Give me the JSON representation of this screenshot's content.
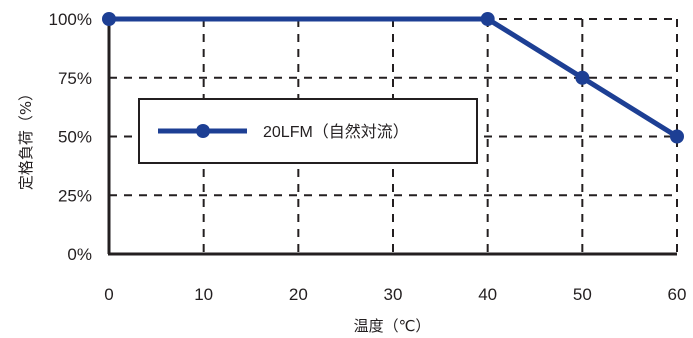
{
  "chart_data": {
    "type": "line",
    "xlabel": "温度（℃）",
    "ylabel": "定格負荷（%）",
    "x_ticks": [
      "0",
      "10",
      "20",
      "30",
      "40",
      "50",
      "60"
    ],
    "y_ticks": [
      "0%",
      "25%",
      "50%",
      "75%",
      "100%"
    ],
    "xlim": [
      0,
      60
    ],
    "ylim": [
      0,
      100
    ],
    "grid": true,
    "legend_placement": "center-left",
    "series": [
      {
        "name": "20LFM（自然対流）",
        "color": "#1d3f94",
        "x": [
          0,
          40,
          50,
          60
        ],
        "y": [
          100,
          100,
          75,
          50
        ]
      }
    ]
  },
  "colors": {
    "axis": "#231f20",
    "grid": "#231f20",
    "series": "#1d3f94"
  }
}
